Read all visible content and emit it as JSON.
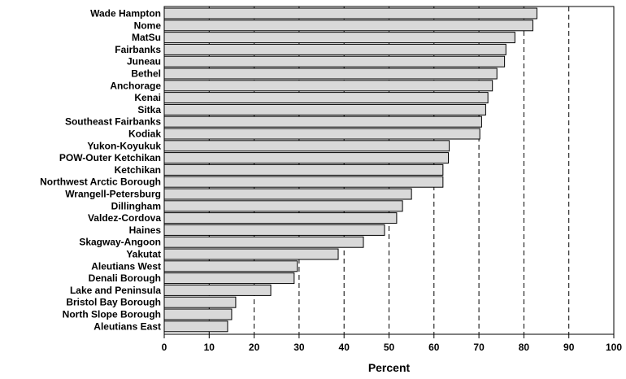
{
  "chart_data": {
    "type": "bar",
    "orientation": "horizontal",
    "title": "",
    "xlabel": "Percent",
    "ylabel": "",
    "xlim": [
      0,
      100
    ],
    "xticks": [
      0,
      10,
      20,
      30,
      40,
      50,
      60,
      70,
      80,
      90,
      100
    ],
    "grid": "vertical dashed",
    "bar_color": "#d9d9d9",
    "bar_edge_color": "#000000",
    "categories": [
      "Wade Hampton",
      "Nome",
      "MatSu",
      "Fairbanks",
      "Juneau",
      "Bethel",
      "Anchorage",
      "Kenai",
      "Sitka",
      "Southeast Fairbanks",
      "Kodiak",
      "Yukon-Koyukuk",
      "POW-Outer Ketchikan",
      "Ketchikan",
      "Northwest Arctic Borough",
      "Wrangell-Petersburg",
      "Dillingham",
      "Valdez-Cordova",
      "Haines",
      "Skagway-Angoon",
      "Yakutat",
      "Aleutians West",
      "Denali Borough",
      "Lake and Peninsula",
      "Bristol Bay Borough",
      "North Slope Borough",
      "Aleutians East"
    ],
    "values": [
      82.9,
      82.0,
      78.0,
      76.0,
      75.7,
      74.0,
      73.0,
      72.0,
      71.5,
      70.6,
      70.2,
      63.4,
      63.2,
      62.0,
      62.0,
      55.0,
      53.0,
      51.7,
      49.0,
      44.3,
      38.7,
      29.6,
      28.9,
      23.7,
      15.9,
      15.0,
      14.1
    ]
  }
}
